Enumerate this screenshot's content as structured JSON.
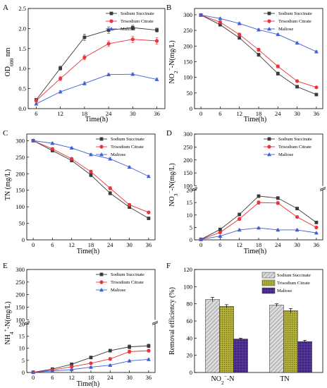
{
  "colors": {
    "sodium_succinate": "#3a3a3a",
    "trisodium_citrate": "#e8343a",
    "maltose": "#3f5fd6"
  },
  "chart_data": [
    {
      "panel": "A",
      "type": "line",
      "x": [
        6,
        12,
        18,
        24,
        30,
        36
      ],
      "xlabel": "Time(h)",
      "ylabel": "OD600 nm",
      "xlim": [
        4,
        38
      ],
      "ylim": [
        0.0,
        2.5
      ],
      "xticks": [
        "6",
        "12",
        "18",
        "24",
        "30",
        "36"
      ],
      "yticks": [
        "0.0",
        "0.5",
        "1.0",
        "1.5",
        "2.0",
        "2.5"
      ],
      "legend": "top-right",
      "series": [
        {
          "name": "Sodium Succinate",
          "marker": "square",
          "values": [
            0.22,
            1.01,
            1.78,
            1.96,
            2.02,
            1.96
          ],
          "errors": [
            0.03,
            0.05,
            0.08,
            0.08,
            0.06,
            0.05
          ]
        },
        {
          "name": "Trisodium Citrate",
          "marker": "circle",
          "values": [
            0.2,
            0.75,
            1.28,
            1.62,
            1.73,
            1.69
          ],
          "errors": [
            0.02,
            0.05,
            0.06,
            0.07,
            0.08,
            0.08
          ]
        },
        {
          "name": "Maltose",
          "marker": "triangle",
          "values": [
            0.12,
            0.42,
            0.63,
            0.85,
            0.86,
            0.73
          ],
          "errors": [
            0.02,
            0.03,
            0.04,
            0.03,
            0.03,
            0.03
          ]
        }
      ]
    },
    {
      "panel": "B",
      "type": "line",
      "x": [
        0,
        6,
        12,
        18,
        24,
        30,
        36
      ],
      "xlabel": "Time(h)",
      "ylabel": "NO2−-N(mg/L)",
      "xlim": [
        -2,
        38
      ],
      "ylim": [
        0,
        320
      ],
      "xticks": [
        "0",
        "6",
        "12",
        "18",
        "24",
        "30",
        "36"
      ],
      "yticks": [
        "0",
        "50",
        "100",
        "150",
        "200",
        "250",
        "300"
      ],
      "legend": "top-right",
      "series": [
        {
          "name": "Sodium Succinate",
          "marker": "square",
          "values": [
            299,
            268,
            226,
            172,
            112,
            70,
            45
          ],
          "errors": [
            3,
            4,
            4,
            5,
            5,
            4,
            3
          ]
        },
        {
          "name": "Trisodium Citrate",
          "marker": "circle",
          "values": [
            299,
            276,
            237,
            188,
            135,
            88,
            68
          ],
          "errors": [
            3,
            4,
            4,
            5,
            5,
            4,
            3
          ]
        },
        {
          "name": "Maltose",
          "marker": "triangle",
          "values": [
            299,
            288,
            272,
            252,
            237,
            210,
            182
          ],
          "errors": [
            2,
            3,
            3,
            3,
            3,
            3,
            3
          ]
        }
      ]
    },
    {
      "panel": "C",
      "type": "line",
      "x": [
        0,
        6,
        12,
        18,
        24,
        30,
        36
      ],
      "xlabel": "Time(h)",
      "ylabel": "TN (mg/L)",
      "xlim": [
        -2,
        38
      ],
      "ylim": [
        0,
        320
      ],
      "xticks": [
        "0",
        "6",
        "12",
        "18",
        "24",
        "30",
        "36"
      ],
      "yticks": [
        "0",
        "50",
        "100",
        "150",
        "200",
        "250",
        "300"
      ],
      "legend": "top-right",
      "series": [
        {
          "name": "Sodium Succinate",
          "marker": "square",
          "values": [
            300,
            270,
            240,
            196,
            141,
            99,
            65
          ],
          "errors": [
            3,
            4,
            4,
            5,
            5,
            4,
            3
          ]
        },
        {
          "name": "Trisodium Citrate",
          "marker": "circle",
          "values": [
            300,
            275,
            245,
            206,
            156,
            106,
            83
          ],
          "errors": [
            3,
            4,
            4,
            5,
            5,
            4,
            3
          ]
        },
        {
          "name": "Maltose",
          "marker": "triangle",
          "values": [
            300,
            292,
            278,
            258,
            245,
            220,
            192
          ],
          "errors": [
            2,
            3,
            3,
            3,
            3,
            3,
            3
          ]
        }
      ]
    },
    {
      "panel": "D",
      "type": "line",
      "x": [
        0,
        6,
        12,
        18,
        24,
        30,
        36
      ],
      "xlabel": "Time(h)",
      "ylabel": "NO3−-N(mg/L)",
      "xlim": [
        -2,
        38
      ],
      "ylim": [
        0,
        300
      ],
      "axis_break": [
        20,
        100
      ],
      "xticks": [
        "0",
        "6",
        "12",
        "18",
        "24",
        "30",
        "36"
      ],
      "yticks_low": [
        "0",
        "5",
        "10",
        "15",
        "20"
      ],
      "yticks_high": [
        "100",
        "150",
        "200",
        "250",
        "300"
      ],
      "legend": "top-right",
      "series": [
        {
          "name": "Sodium Succinate",
          "marker": "square",
          "values": [
            0.2,
            4.2,
            10.2,
            17.6,
            16.8,
            12.6,
            7
          ],
          "errors": [
            0.1,
            0.4,
            0.6,
            0.6,
            0.6,
            0.5,
            0.4
          ]
        },
        {
          "name": "Trisodium Citrate",
          "marker": "circle",
          "values": [
            0.2,
            3,
            8.4,
            15,
            14.8,
            9.2,
            5
          ],
          "errors": [
            0.1,
            0.4,
            0.6,
            0.7,
            0.6,
            0.5,
            0.4
          ]
        },
        {
          "name": "Maltose",
          "marker": "triangle",
          "values": [
            0.2,
            1.5,
            4,
            4.8,
            4,
            4,
            2.8
          ],
          "errors": [
            0.1,
            0.2,
            0.3,
            0.3,
            0.3,
            0.3,
            0.2
          ]
        }
      ]
    },
    {
      "panel": "E",
      "type": "line",
      "x": [
        0,
        6,
        12,
        18,
        24,
        30,
        36
      ],
      "xlabel": "Time(h)",
      "ylabel": "NH4+-N(mg/L)",
      "xlim": [
        -2,
        38
      ],
      "ylim": [
        0,
        300
      ],
      "axis_break": [
        20,
        100
      ],
      "xticks": [
        "0",
        "6",
        "12",
        "18",
        "24",
        "30",
        "36"
      ],
      "yticks_low": [
        "0",
        "5",
        "10",
        "15",
        "20"
      ],
      "yticks_high": [
        "100",
        "150",
        "200",
        "250",
        "300"
      ],
      "legend": "top-right",
      "series": [
        {
          "name": "Sodium Succinate",
          "marker": "square",
          "values": [
            0.1,
            1.4,
            3.4,
            6.2,
            9,
            10.6,
            11
          ],
          "errors": [
            0.1,
            0.3,
            0.4,
            0.6,
            0.6,
            0.8,
            0.7
          ]
        },
        {
          "name": "Trisodium Citrate",
          "marker": "circle",
          "values": [
            0.1,
            1,
            2.4,
            3.8,
            5.6,
            8.6,
            9
          ],
          "errors": [
            0.1,
            0.3,
            0.4,
            0.4,
            0.5,
            0.7,
            0.6
          ]
        },
        {
          "name": "Maltose",
          "marker": "triangle",
          "values": [
            0.1,
            0.6,
            1.2,
            2.2,
            3,
            4.8,
            5.4
          ],
          "errors": [
            0.1,
            0.2,
            0.3,
            0.3,
            0.3,
            0.4,
            0.4
          ]
        }
      ]
    },
    {
      "panel": "F",
      "type": "bar",
      "categories": [
        "NO2−-N",
        "TN"
      ],
      "ylabel": "Removal efficiency (%)",
      "ylim": [
        0,
        120
      ],
      "yticks": [
        "0",
        "20",
        "40",
        "60",
        "80",
        "100",
        "120"
      ],
      "legend": "top-right",
      "series": [
        {
          "name": "Sodium Succinate",
          "values": [
            85,
            78.5
          ],
          "errors": [
            2.5,
            1.5
          ]
        },
        {
          "name": "Trisodium Citrate",
          "values": [
            77,
            72
          ],
          "errors": [
            2,
            2.5
          ]
        },
        {
          "name": "Maltose",
          "values": [
            39,
            36
          ],
          "errors": [
            1,
            1.5
          ]
        }
      ]
    }
  ]
}
